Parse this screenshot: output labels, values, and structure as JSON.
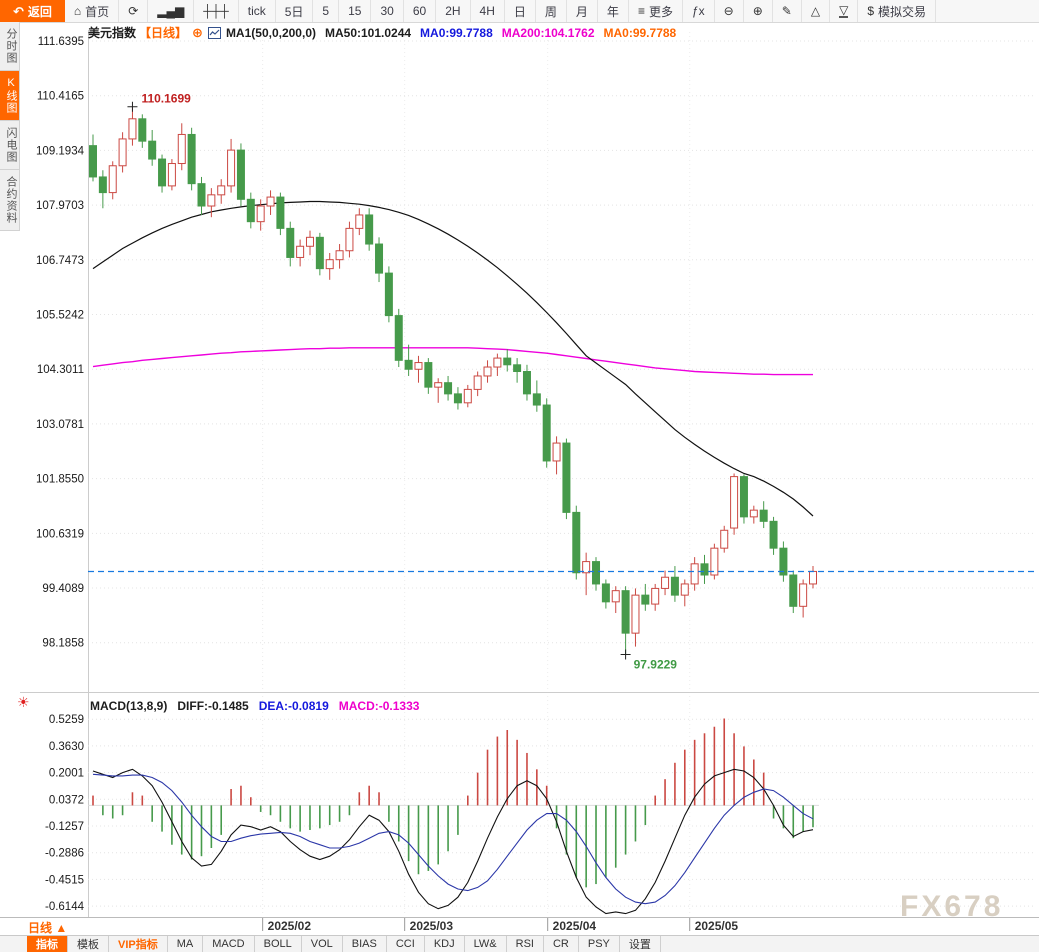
{
  "toolbar": {
    "back": {
      "label": "返回",
      "glyph": "↶"
    },
    "items": [
      {
        "name": "home-button",
        "label": "首页",
        "glyph": "⌂",
        "icon_name": "home-icon"
      },
      {
        "name": "refresh-button",
        "glyph": "⟳",
        "icon_name": "refresh-icon"
      },
      {
        "name": "chart-style-button",
        "glyph": "▂▄▆",
        "icon_name": "bar-chart-icon"
      },
      {
        "name": "indicator-settings-button",
        "glyph": "┼┼┼",
        "icon_name": "sliders-icon"
      },
      {
        "name": "interval-tick-button",
        "label": "tick"
      },
      {
        "name": "interval-5d-button",
        "label": "5日"
      },
      {
        "name": "interval-5-button",
        "label": "5"
      },
      {
        "name": "interval-15-button",
        "label": "15"
      },
      {
        "name": "interval-30-button",
        "label": "30"
      },
      {
        "name": "interval-60-button",
        "label": "60"
      },
      {
        "name": "interval-2h-button",
        "label": "2H"
      },
      {
        "name": "interval-4h-button",
        "label": "4H"
      },
      {
        "name": "interval-day-button",
        "label": "日"
      },
      {
        "name": "interval-week-button",
        "label": "周"
      },
      {
        "name": "interval-month-button",
        "label": "月"
      },
      {
        "name": "interval-year-button",
        "label": "年"
      },
      {
        "name": "more-button",
        "label": "更多",
        "glyph": "≡",
        "icon_name": "menu-icon"
      },
      {
        "name": "formula-button",
        "label": "ƒx"
      },
      {
        "name": "zoom-out-button",
        "glyph": "⊖",
        "icon_name": "zoom-out-icon"
      },
      {
        "name": "zoom-in-button",
        "glyph": "⊕",
        "icon_name": "zoom-in-icon"
      },
      {
        "name": "draw-button",
        "glyph": "✎",
        "icon_name": "pencil-icon"
      },
      {
        "name": "triangle-up-button",
        "glyph": "△",
        "icon_name": "triangle-up-icon"
      },
      {
        "name": "triangle-down-button",
        "glyph": "▽",
        "icon_name": "triangle-down-icon",
        "underline": true
      },
      {
        "name": "demo-trade-button",
        "label": "模拟交易",
        "glyph": "$",
        "icon_name": "dollar-icon"
      }
    ]
  },
  "sidebar": {
    "tabs": [
      {
        "name": "sidebar-tab-time-chart",
        "label": "分时图",
        "active": false
      },
      {
        "name": "sidebar-tab-kline-chart",
        "label": "K线图",
        "active": true
      },
      {
        "name": "sidebar-tab-lightning-chart",
        "label": "闪电图",
        "active": false
      },
      {
        "name": "sidebar-tab-contract-info",
        "label": "合约资料",
        "active": false
      }
    ]
  },
  "chart_header": {
    "symbol": "美元指数",
    "period": "【日线】",
    "plus": "⊕",
    "ma_settings": "MA1(50,0,200,0)",
    "ma50": "MA50:101.0244",
    "ma0_blue": "MA0:99.7788",
    "ma200": "MA200:104.1762",
    "ma0_orange": "MA0:99.7788"
  },
  "macd_header": {
    "title": "MACD(13,8,9)",
    "diff": "DIFF:-0.1485",
    "dea": "DEA:-0.0819",
    "macd": "MACD:-0.1333"
  },
  "bottom": {
    "period_label": "日线 ▲",
    "tabs": [
      {
        "name": "tab-indicators",
        "label": "指标",
        "active": true
      },
      {
        "name": "tab-templates",
        "label": "模板"
      },
      {
        "name": "tab-vip-indicators",
        "label": "VIP指标",
        "vip": true
      },
      {
        "name": "tab-ma",
        "label": "MA"
      },
      {
        "name": "tab-macd",
        "label": "MACD"
      },
      {
        "name": "tab-boll",
        "label": "BOLL"
      },
      {
        "name": "tab-vol",
        "label": "VOL"
      },
      {
        "name": "tab-bias",
        "label": "BIAS"
      },
      {
        "name": "tab-cci",
        "label": "CCI"
      },
      {
        "name": "tab-kdj",
        "label": "KDJ"
      },
      {
        "name": "tab-lwr",
        "label": "LW&"
      },
      {
        "name": "tab-rsi",
        "label": "RSI"
      },
      {
        "name": "tab-cr",
        "label": "CR"
      },
      {
        "name": "tab-psy",
        "label": "PSY"
      },
      {
        "name": "tab-settings",
        "label": "设置"
      }
    ]
  },
  "watermark": "FX678",
  "colors": {
    "accent": "#ff6600",
    "up": "#cb4842",
    "down": "#469a4b",
    "ma50_line": "#111111",
    "ma200_line": "#ee00dd",
    "diff_line": "#111111",
    "dea_line": "#2b37a8",
    "price_line": "#1879e0",
    "grid": "#e4e4e4",
    "annotation_high": "#c02020",
    "annotation_low": "#3f9a44"
  },
  "chart_data": {
    "type": "candlestick",
    "title": "美元指数 日线",
    "price_axis_labels": [
      "111.6395",
      "110.4165",
      "109.1934",
      "107.9703",
      "106.7473",
      "105.5242",
      "104.3011",
      "103.0781",
      "101.8550",
      "100.6319",
      "99.4089",
      "98.1858"
    ],
    "x_axis_labels": [
      "2025/02",
      "2025/03",
      "2025/04",
      "2025/05"
    ],
    "x_axis_label_candle_index": [
      17.2,
      31.6,
      46.1,
      60.5
    ],
    "current_price_line": 99.7788,
    "high_annotation": {
      "label": "110.1699",
      "value": 110.1699,
      "candle_index": 4
    },
    "low_annotation": {
      "label": "97.9229",
      "value": 97.9229,
      "candle_index": 54
    },
    "candles_ohlc": [
      [
        109.3,
        109.55,
        108.5,
        108.6
      ],
      [
        108.6,
        108.75,
        107.9,
        108.25
      ],
      [
        108.25,
        108.95,
        108.1,
        108.85
      ],
      [
        108.85,
        109.6,
        108.7,
        109.45
      ],
      [
        109.45,
        110.17,
        109.3,
        109.9
      ],
      [
        109.9,
        110.0,
        109.25,
        109.4
      ],
      [
        109.4,
        109.65,
        108.85,
        109.0
      ],
      [
        109.0,
        109.1,
        108.25,
        108.4
      ],
      [
        108.4,
        109.0,
        108.3,
        108.9
      ],
      [
        108.9,
        109.8,
        108.75,
        109.55
      ],
      [
        109.55,
        109.7,
        108.3,
        108.45
      ],
      [
        108.45,
        108.6,
        107.75,
        107.95
      ],
      [
        107.95,
        108.35,
        107.7,
        108.2
      ],
      [
        108.2,
        108.55,
        108.0,
        108.4
      ],
      [
        108.4,
        109.45,
        108.25,
        109.2
      ],
      [
        109.2,
        109.35,
        107.95,
        108.1
      ],
      [
        108.1,
        108.25,
        107.45,
        107.6
      ],
      [
        107.6,
        108.1,
        107.4,
        107.95
      ],
      [
        107.95,
        108.3,
        107.75,
        108.15
      ],
      [
        108.15,
        108.25,
        107.3,
        107.45
      ],
      [
        107.45,
        107.6,
        106.6,
        106.8
      ],
      [
        106.8,
        107.2,
        106.6,
        107.05
      ],
      [
        107.05,
        107.4,
        106.85,
        107.25
      ],
      [
        107.25,
        107.35,
        106.4,
        106.55
      ],
      [
        106.55,
        106.9,
        106.3,
        106.75
      ],
      [
        106.75,
        107.1,
        106.55,
        106.95
      ],
      [
        106.95,
        107.6,
        106.8,
        107.45
      ],
      [
        107.45,
        107.9,
        107.3,
        107.75
      ],
      [
        107.75,
        107.9,
        106.95,
        107.1
      ],
      [
        107.1,
        107.25,
        106.25,
        106.45
      ],
      [
        106.45,
        106.6,
        105.35,
        105.5
      ],
      [
        105.5,
        105.65,
        104.35,
        104.5
      ],
      [
        104.5,
        104.85,
        104.15,
        104.3
      ],
      [
        104.3,
        104.6,
        104.0,
        104.45
      ],
      [
        104.45,
        104.55,
        103.75,
        103.9
      ],
      [
        103.9,
        104.1,
        103.55,
        104.0
      ],
      [
        104.0,
        104.15,
        103.6,
        103.75
      ],
      [
        103.75,
        103.9,
        103.4,
        103.55
      ],
      [
        103.55,
        103.95,
        103.45,
        103.85
      ],
      [
        103.85,
        104.25,
        103.7,
        104.15
      ],
      [
        104.15,
        104.5,
        104.0,
        104.35
      ],
      [
        104.35,
        104.65,
        104.15,
        104.55
      ],
      [
        104.55,
        104.75,
        104.25,
        104.4
      ],
      [
        104.4,
        104.55,
        104.0,
        104.25
      ],
      [
        104.25,
        104.4,
        103.6,
        103.75
      ],
      [
        103.75,
        104.05,
        103.35,
        103.5
      ],
      [
        103.5,
        103.65,
        102.1,
        102.25
      ],
      [
        102.25,
        102.8,
        101.95,
        102.65
      ],
      [
        102.65,
        102.75,
        100.95,
        101.1
      ],
      [
        101.1,
        101.25,
        99.6,
        99.75
      ],
      [
        99.75,
        100.2,
        99.25,
        100.0
      ],
      [
        100.0,
        100.1,
        99.35,
        99.5
      ],
      [
        99.5,
        99.6,
        98.95,
        99.1
      ],
      [
        99.1,
        99.45,
        98.85,
        99.35
      ],
      [
        99.35,
        99.45,
        97.92,
        98.4
      ],
      [
        98.4,
        99.4,
        98.1,
        99.25
      ],
      [
        99.25,
        99.5,
        98.9,
        99.05
      ],
      [
        99.05,
        99.5,
        98.9,
        99.4
      ],
      [
        99.4,
        99.8,
        99.25,
        99.65
      ],
      [
        99.65,
        99.9,
        99.1,
        99.25
      ],
      [
        99.25,
        99.6,
        99.0,
        99.5
      ],
      [
        99.5,
        100.1,
        99.35,
        99.95
      ],
      [
        99.95,
        100.15,
        99.5,
        99.7
      ],
      [
        99.7,
        100.4,
        99.6,
        100.3
      ],
      [
        100.3,
        100.8,
        100.2,
        100.7
      ],
      [
        100.75,
        101.97,
        100.6,
        101.9
      ],
      [
        101.9,
        101.95,
        100.85,
        101.0
      ],
      [
        101.0,
        101.25,
        100.85,
        101.15
      ],
      [
        101.15,
        101.35,
        100.75,
        100.9
      ],
      [
        100.9,
        101.0,
        100.15,
        100.3
      ],
      [
        100.3,
        100.45,
        99.55,
        99.7
      ],
      [
        99.7,
        99.8,
        98.85,
        99.0
      ],
      [
        99.0,
        99.6,
        98.75,
        99.5
      ],
      [
        99.5,
        99.9,
        99.4,
        99.78
      ]
    ],
    "ma50": [
      106.55,
      106.7,
      106.85,
      107.0,
      107.12,
      107.24,
      107.35,
      107.45,
      107.54,
      107.62,
      107.7,
      107.76,
      107.82,
      107.86,
      107.9,
      107.93,
      107.96,
      107.98,
      108.0,
      108.02,
      108.03,
      108.04,
      108.05,
      108.05,
      108.04,
      108.03,
      108.01,
      107.99,
      107.96,
      107.92,
      107.87,
      107.81,
      107.74,
      107.65,
      107.55,
      107.44,
      107.32,
      107.19,
      107.05,
      106.9,
      106.74,
      106.57,
      106.39,
      106.2,
      106.0,
      105.79,
      105.57,
      105.34,
      105.1,
      104.85,
      104.6,
      104.44,
      104.28,
      104.12,
      103.96,
      103.75,
      103.55,
      103.35,
      103.15,
      102.95,
      102.78,
      102.62,
      102.47,
      102.33,
      102.2,
      102.08,
      101.97,
      101.9,
      101.8,
      101.68,
      101.55,
      101.4,
      101.22,
      101.02
    ],
    "ma200": [
      104.36,
      104.39,
      104.42,
      104.45,
      104.47,
      104.5,
      104.52,
      104.54,
      104.56,
      104.58,
      104.6,
      104.62,
      104.64,
      104.66,
      104.67,
      104.69,
      104.7,
      104.71,
      104.72,
      104.73,
      104.74,
      104.75,
      104.76,
      104.76,
      104.77,
      104.77,
      104.78,
      104.78,
      104.78,
      104.78,
      104.78,
      104.78,
      104.78,
      104.78,
      104.78,
      104.78,
      104.78,
      104.78,
      104.78,
      104.77,
      104.76,
      104.75,
      104.74,
      104.72,
      104.7,
      104.68,
      104.66,
      104.63,
      104.6,
      104.57,
      104.54,
      104.51,
      104.48,
      104.45,
      104.42,
      104.39,
      104.36,
      104.33,
      104.31,
      104.29,
      104.27,
      104.25,
      104.24,
      104.23,
      104.22,
      104.21,
      104.2,
      104.19,
      104.19,
      104.18,
      104.18,
      104.18,
      104.18,
      104.18
    ],
    "macd": {
      "axis_labels": [
        "0.5259",
        "0.3630",
        "0.2001",
        "0.0372",
        "-0.1257",
        "-0.2886",
        "-0.4515",
        "-0.6144"
      ],
      "hist": [
        0.06,
        -0.06,
        -0.08,
        -0.06,
        0.08,
        0.06,
        -0.1,
        -0.16,
        -0.24,
        -0.3,
        -0.33,
        -0.31,
        -0.26,
        -0.18,
        0.1,
        0.12,
        0.05,
        -0.04,
        -0.06,
        -0.1,
        -0.14,
        -0.16,
        -0.15,
        -0.14,
        -0.12,
        -0.1,
        -0.06,
        0.08,
        0.12,
        0.08,
        -0.1,
        -0.22,
        -0.34,
        -0.42,
        -0.4,
        -0.36,
        -0.28,
        -0.18,
        0.06,
        0.2,
        0.34,
        0.42,
        0.46,
        0.4,
        0.32,
        0.22,
        0.12,
        -0.14,
        -0.3,
        -0.44,
        -0.5,
        -0.48,
        -0.44,
        -0.38,
        -0.3,
        -0.22,
        -0.12,
        0.06,
        0.16,
        0.26,
        0.34,
        0.4,
        0.44,
        0.48,
        0.53,
        0.44,
        0.36,
        0.28,
        0.2,
        -0.08,
        -0.14,
        -0.2,
        -0.16,
        -0.1333
      ],
      "diff": [
        0.21,
        0.19,
        0.17,
        0.2,
        0.22,
        0.18,
        0.12,
        0.02,
        -0.1,
        -0.22,
        -0.32,
        -0.37,
        -0.36,
        -0.28,
        -0.18,
        -0.12,
        -0.13,
        -0.15,
        -0.13,
        -0.16,
        -0.22,
        -0.27,
        -0.31,
        -0.33,
        -0.31,
        -0.27,
        -0.21,
        -0.13,
        -0.06,
        -0.09,
        -0.16,
        -0.28,
        -0.42,
        -0.53,
        -0.6,
        -0.63,
        -0.61,
        -0.56,
        -0.47,
        -0.34,
        -0.2,
        -0.07,
        0.04,
        0.12,
        0.15,
        0.12,
        0.04,
        -0.1,
        -0.28,
        -0.44,
        -0.56,
        -0.62,
        -0.66,
        -0.65,
        -0.66,
        -0.64,
        -0.57,
        -0.47,
        -0.34,
        -0.2,
        -0.06,
        0.05,
        0.13,
        0.18,
        0.2,
        0.22,
        0.21,
        0.17,
        0.1,
        0.0,
        -0.12,
        -0.19,
        -0.16,
        -0.1485
      ],
      "dea": [
        0.19,
        0.185,
        0.18,
        0.18,
        0.185,
        0.185,
        0.17,
        0.14,
        0.09,
        0.02,
        -0.06,
        -0.13,
        -0.19,
        -0.22,
        -0.22,
        -0.2,
        -0.185,
        -0.175,
        -0.17,
        -0.165,
        -0.17,
        -0.19,
        -0.22,
        -0.24,
        -0.26,
        -0.26,
        -0.25,
        -0.23,
        -0.2,
        -0.17,
        -0.16,
        -0.18,
        -0.23,
        -0.3,
        -0.37,
        -0.43,
        -0.48,
        -0.51,
        -0.52,
        -0.5,
        -0.46,
        -0.39,
        -0.31,
        -0.23,
        -0.15,
        -0.09,
        -0.05,
        -0.05,
        -0.09,
        -0.16,
        -0.25,
        -0.35,
        -0.44,
        -0.51,
        -0.56,
        -0.59,
        -0.6,
        -0.59,
        -0.55,
        -0.49,
        -0.41,
        -0.32,
        -0.23,
        -0.14,
        -0.06,
        0.0,
        0.05,
        0.08,
        0.1,
        0.09,
        0.05,
        0.0,
        -0.05,
        -0.0819
      ]
    }
  }
}
